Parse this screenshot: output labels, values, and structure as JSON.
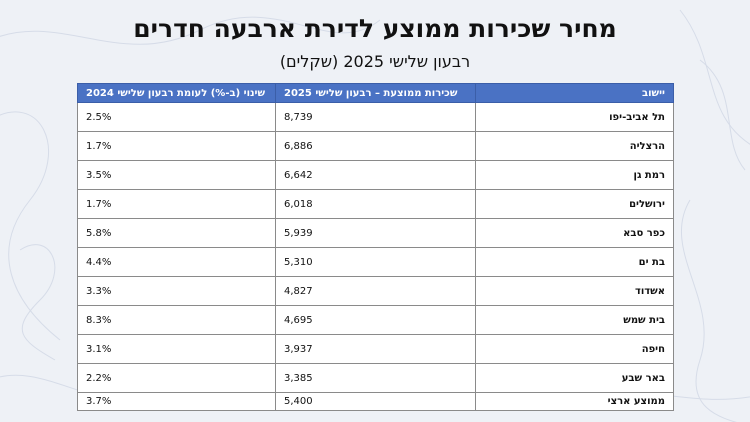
{
  "title": "מחיר שכירות ממוצע לדירת ארבעה חדרים",
  "subtitle": "רבעון שלישי 2025 (שקלים)",
  "table": {
    "headers": [
      "יישוב",
      "שכירות ממוצעת – רבעון שלישי 2025",
      "שינוי (ב-%) לעומת רבעון שלישי 2024"
    ],
    "rows": [
      {
        "city": "תל אביב-יפו",
        "rent": "8,739",
        "change": "2.5%"
      },
      {
        "city": "הרצליה",
        "rent": "6,886",
        "change": "1.7%"
      },
      {
        "city": "רמת גן",
        "rent": "6,642",
        "change": "3.5%"
      },
      {
        "city": "ירושלים",
        "rent": "6,018",
        "change": "1.7%"
      },
      {
        "city": "כפר סבא",
        "rent": "5,939",
        "change": "5.8%"
      },
      {
        "city": "בת ים",
        "rent": "5,310",
        "change": "4.4%"
      },
      {
        "city": "אשדוד",
        "rent": "4,827",
        "change": "3.3%"
      },
      {
        "city": "בית שמש",
        "rent": "4,695",
        "change": "8.3%"
      },
      {
        "city": "חיפה",
        "rent": "3,937",
        "change": "3.1%"
      },
      {
        "city": "באר שבע",
        "rent": "3,385",
        "change": "2.2%"
      },
      {
        "city": "ממוצע ארצי",
        "rent": "5,400",
        "change": "3.7%"
      }
    ]
  },
  "colors": {
    "header_bg": "#4a72c4",
    "page_bg": "#eef1f6"
  }
}
